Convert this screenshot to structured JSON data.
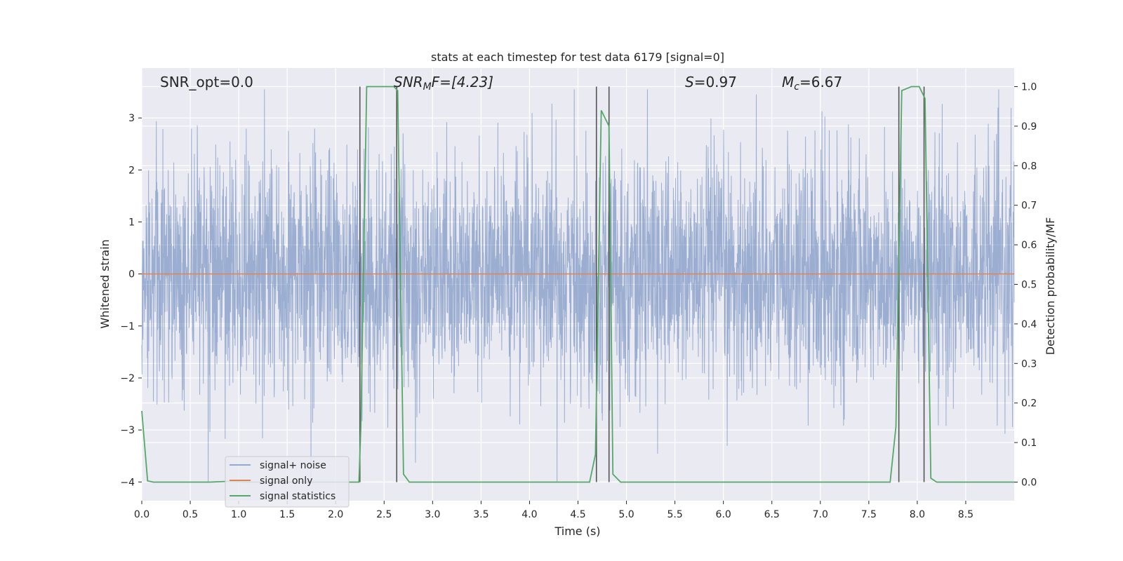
{
  "chart_data": {
    "type": "line",
    "title": "stats at each timestep for test data 6179 [signal=0]",
    "xlabel": "Time (s)",
    "ylabel_left": "Whitened strain",
    "ylabel_right": "Detection probability/MF",
    "xlim": [
      0,
      9.0
    ],
    "ylim_left": [
      -4.36,
      3.96
    ],
    "ylim_right": [
      -0.047,
      1.047
    ],
    "x_ticks": [
      0.0,
      0.5,
      1.0,
      1.5,
      2.0,
      2.5,
      3.0,
      3.5,
      4.0,
      4.5,
      5.0,
      5.5,
      6.0,
      6.5,
      7.0,
      7.5,
      8.0,
      8.5
    ],
    "x_tick_labels": [
      "0.0",
      "0.5",
      "1.0",
      "1.5",
      "2.0",
      "2.5",
      "3.0",
      "3.5",
      "4.0",
      "4.5",
      "5.0",
      "5.5",
      "6.0",
      "6.5",
      "7.0",
      "7.5",
      "8.0",
      "8.5"
    ],
    "y_left_ticks": [
      3,
      2,
      1,
      0,
      -1,
      -2,
      -3,
      -4
    ],
    "y_left_tick_labels": [
      "3",
      "2",
      "1",
      "0",
      "−1",
      "−2",
      "−3",
      "−4"
    ],
    "y_right_ticks": [
      1.0,
      0.9,
      0.8,
      0.7,
      0.6,
      0.5,
      0.4,
      0.3,
      0.2,
      0.1,
      0.0
    ],
    "y_right_tick_labels": [
      "1.0",
      "0.9",
      "0.8",
      "0.7",
      "0.6",
      "0.5",
      "0.4",
      "0.3",
      "0.2",
      "0.1",
      "0.0"
    ],
    "grid": true,
    "legend_position": "lower-left",
    "annotations": {
      "snr_opt": "SNR_opt=0.0",
      "snr_mf_sym": "SNR",
      "snr_mf_sub": "M",
      "snr_mf_rest": "F=[4.23]",
      "s_sym": "S",
      "s_value": "=0.97",
      "mc_sym": "M",
      "mc_sub": "c",
      "mc_value": "=6.67"
    },
    "noise_series": {
      "name": "signal+ noise",
      "color": "#4c72b0",
      "sampling": "dense random noise, ~N(0,1.1), span 0-9 s, extremes about -4.0 and 3.55"
    },
    "signal_only": {
      "name": "signal only",
      "color": "#dd8452",
      "y": 0
    },
    "signal_statistics": {
      "name": "signal statistics",
      "color": "#55a868",
      "x": [
        0.0,
        0.06,
        0.12,
        0.2,
        0.7,
        0.9,
        1.1,
        2.24,
        2.26,
        2.32,
        2.6,
        2.64,
        2.7,
        2.76,
        4.62,
        4.68,
        4.74,
        4.82,
        4.86,
        4.94,
        7.72,
        7.78,
        7.84,
        7.94,
        8.02,
        8.08,
        8.14,
        8.2,
        8.25,
        9.0
      ],
      "y": [
        0.18,
        0.003,
        0.0,
        0.0,
        0.0,
        0.002,
        0.0,
        0.0,
        0.14,
        1.0,
        1.0,
        0.99,
        0.02,
        0.0,
        0.0,
        0.07,
        0.94,
        0.9,
        0.02,
        0.0,
        0.0,
        0.14,
        0.99,
        1.0,
        1.0,
        0.97,
        0.01,
        0.0,
        0.0,
        0.0
      ]
    },
    "vertical_markers": [
      2.25,
      2.63,
      4.69,
      4.82,
      7.81,
      8.07
    ],
    "marker_color": "#555555"
  },
  "colors": {
    "axes_bg": "#eaeaf2",
    "grid": "#ffffff",
    "text": "#262626"
  }
}
